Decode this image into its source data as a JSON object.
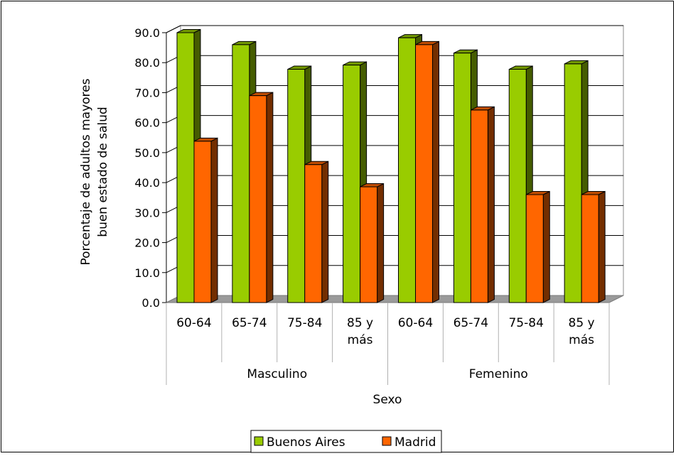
{
  "chart_data": {
    "type": "bar",
    "three_d": true,
    "title": "",
    "xlabel": "Sexo",
    "ylabel_lines": [
      "Porcentaje de adultos mayores",
      "buen estado de salud"
    ],
    "ylim": [
      0,
      90
    ],
    "yticks": [
      "0.0",
      "10.0",
      "20.0",
      "30.0",
      "40.0",
      "50.0",
      "60.0",
      "70.0",
      "80.0",
      "90.0"
    ],
    "grid": true,
    "legend_position": "bottom",
    "groups": [
      {
        "name": "Masculino",
        "categories": [
          [
            "60-64"
          ],
          [
            "65-74"
          ],
          [
            "75-84"
          ],
          [
            "85 y",
            "más"
          ]
        ]
      },
      {
        "name": "Femenino",
        "categories": [
          [
            "60-64"
          ],
          [
            "65-74"
          ],
          [
            "75-84"
          ],
          [
            "85 y",
            "más"
          ]
        ]
      }
    ],
    "series": [
      {
        "name": "Buenos Aires",
        "color": "#99cc00",
        "values": [
          90.0,
          86.0,
          77.8,
          79.2,
          88.3,
          83.2,
          77.8,
          79.6
        ]
      },
      {
        "name": "Madrid",
        "color": "#ff6600",
        "values": [
          53.8,
          69.0,
          46.0,
          38.6,
          86.0,
          64.2,
          36.0,
          36.0
        ]
      }
    ]
  }
}
